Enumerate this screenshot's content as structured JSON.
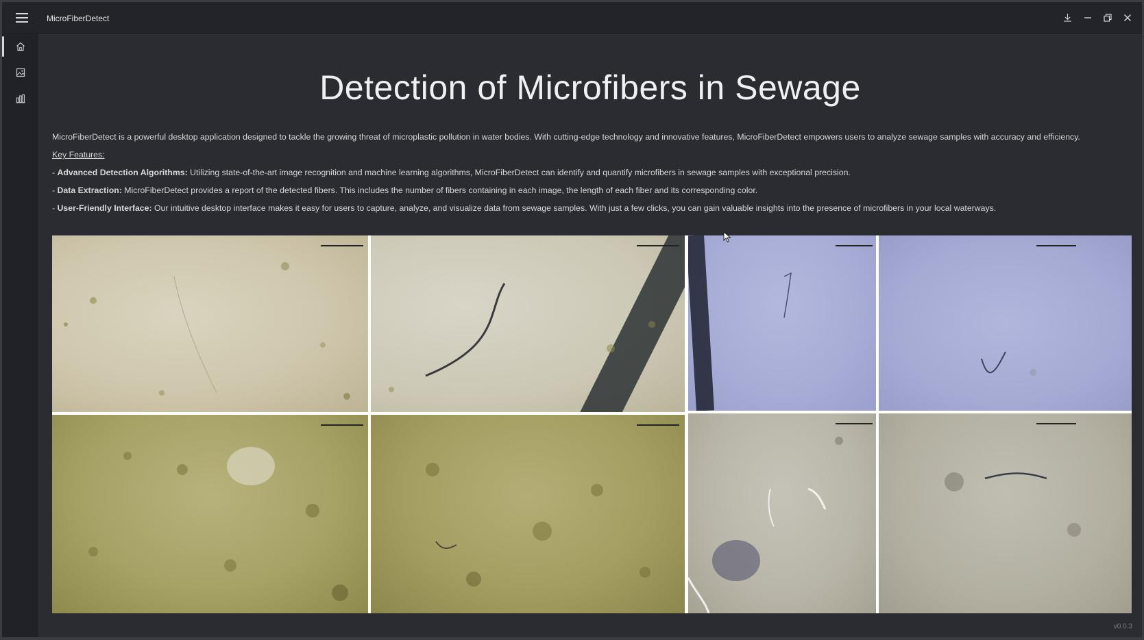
{
  "window": {
    "title": "MicroFiberDetect",
    "controls": [
      "download-icon",
      "minimize-icon",
      "restore-icon",
      "close-icon"
    ],
    "menu_icon": "hamburger-menu-icon"
  },
  "sidebar": {
    "items": [
      {
        "id": "home",
        "icon": "home-icon",
        "active": true
      },
      {
        "id": "images",
        "icon": "image-icon",
        "active": false
      },
      {
        "id": "charts",
        "icon": "bar-chart-icon",
        "active": false
      }
    ]
  },
  "main": {
    "title": "Detection of Microfibers in Sewage",
    "intro": "MicroFiberDetect is a powerful desktop application designed to tackle the growing threat of microplastic pollution in water bodies. With cutting-edge technology and innovative features, MicroFiberDetect empowers users to analyze sewage samples with accuracy and efficiency.",
    "key_features_heading": "Key Features:",
    "features": [
      {
        "name": "Advanced Detection Algorithms:",
        "text": "Utilizing state-of-the-art image recognition and machine learning algorithms, MicroFiberDetect can identify and quantify microfibers in sewage samples with exceptional precision."
      },
      {
        "name": "Data Extraction:",
        "text": "MicroFiberDetect provides a report of the detected fibers. This includes the number of fibers containing in each image, the length of each fiber and its corresponding color."
      },
      {
        "name": "User-Friendly Interface:",
        "text": "Our intuitive desktop interface makes it easy for users to capture, analyze, and visualize data from sewage samples. With just a few clicks, you can gain valuable insights into the presence of microfibers in your local waterways."
      }
    ],
    "feature_prefix": "- "
  },
  "gallery": {
    "images": [
      {
        "id": "sample-1",
        "palette": "beige"
      },
      {
        "id": "sample-2",
        "palette": "beige-with-dark-fiber"
      },
      {
        "id": "sample-3",
        "palette": "blue"
      },
      {
        "id": "sample-4",
        "palette": "blue"
      },
      {
        "id": "sample-5",
        "palette": "olive"
      },
      {
        "id": "sample-6",
        "palette": "olive"
      },
      {
        "id": "sample-7",
        "palette": "grey"
      },
      {
        "id": "sample-8",
        "palette": "grey"
      }
    ]
  },
  "footer": {
    "version": "v0.0.3"
  },
  "colors": {
    "background": "#2a2c31",
    "titlebar": "#22242a",
    "sidebar": "#202227",
    "text": "#d5d7da"
  }
}
